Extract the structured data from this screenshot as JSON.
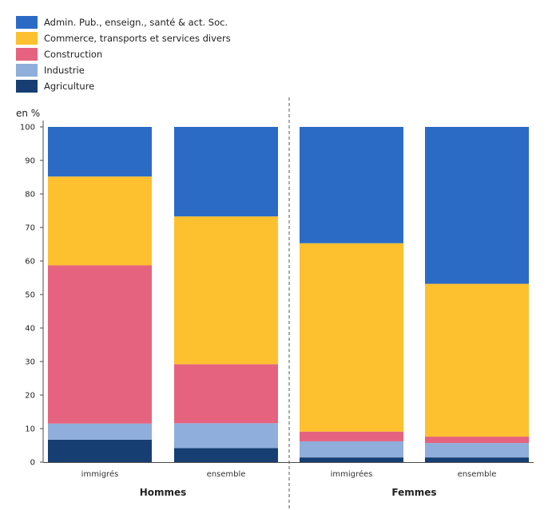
{
  "chart_data": {
    "type": "bar",
    "stacked": true,
    "ylabel": "en %",
    "ylim": [
      0,
      100
    ],
    "yticks": [
      0,
      10,
      20,
      30,
      40,
      50,
      60,
      70,
      80,
      90,
      100
    ],
    "groups": [
      {
        "label": "Hommes",
        "categories": [
          "immigrés",
          "ensemble"
        ]
      },
      {
        "label": "Femmes",
        "categories": [
          "immigrées",
          "ensemble"
        ]
      }
    ],
    "categories": [
      "immigrés",
      "ensemble",
      "immigrées",
      "ensemble"
    ],
    "series": [
      {
        "name": "Agriculture",
        "color": "#163e73",
        "values": [
          6.7,
          4.2,
          1.4,
          1.4
        ]
      },
      {
        "name": "Industrie",
        "color": "#8faedb",
        "values": [
          4.8,
          7.4,
          4.8,
          4.3
        ]
      },
      {
        "name": "Construction",
        "color": "#e5637e",
        "values": [
          47.2,
          17.6,
          2.9,
          1.9
        ]
      },
      {
        "name": "Commerce, transports et services divers",
        "color": "#fdc02f",
        "values": [
          26.5,
          44.1,
          56.2,
          45.6
        ]
      },
      {
        "name": "Admin. Pub., enseign., santé & act. Soc.",
        "color": "#2b6bc6",
        "values": [
          14.8,
          26.7,
          34.7,
          46.8
        ]
      }
    ],
    "legend_order": [
      "Admin. Pub., enseign., santé & act. Soc.",
      "Commerce, transports et services divers",
      "Construction",
      "Industrie",
      "Agriculture"
    ],
    "legend_position": "top-left",
    "grid": false
  }
}
